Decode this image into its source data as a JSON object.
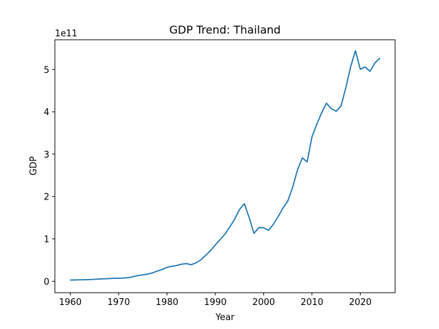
{
  "chart_data": {
    "type": "line",
    "title": "GDP Trend: Thailand",
    "xlabel": "Year",
    "ylabel": "GDP",
    "y_scale_label": "1e11",
    "xlim": [
      1956.8,
      2027.2
    ],
    "ylim": [
      -0.27,
      5.7
    ],
    "x_ticks": [
      1960,
      1970,
      1980,
      1990,
      2000,
      2010,
      2020
    ],
    "y_ticks": [
      0,
      1,
      2,
      3,
      4,
      5
    ],
    "grid": false,
    "line_color": "#1f77b4",
    "series": [
      {
        "x": [
          1960,
          1961,
          1962,
          1963,
          1964,
          1965,
          1966,
          1967,
          1968,
          1969,
          1970,
          1971,
          1972,
          1973,
          1974,
          1975,
          1976,
          1977,
          1978,
          1979,
          1980,
          1981,
          1982,
          1983,
          1984,
          1985,
          1986,
          1987,
          1988,
          1989,
          1990,
          1991,
          1992,
          1993,
          1994,
          1995,
          1996,
          1997,
          1998,
          1999,
          2000,
          2001,
          2002,
          2003,
          2004,
          2005,
          2006,
          2007,
          2008,
          2009,
          2010,
          2011,
          2012,
          2013,
          2014,
          2015,
          2016,
          2017,
          2018,
          2019,
          2020,
          2021,
          2022,
          2023,
          2024
        ],
        "values": [
          0.027,
          0.03,
          0.033,
          0.036,
          0.04,
          0.045,
          0.053,
          0.058,
          0.063,
          0.07,
          0.072,
          0.075,
          0.084,
          0.109,
          0.135,
          0.15,
          0.168,
          0.197,
          0.241,
          0.278,
          0.327,
          0.352,
          0.371,
          0.401,
          0.418,
          0.389,
          0.435,
          0.505,
          0.612,
          0.722,
          0.855,
          0.985,
          1.112,
          1.284,
          1.464,
          1.693,
          1.83,
          1.505,
          1.13,
          1.266,
          1.262,
          1.202,
          1.343,
          1.527,
          1.728,
          1.893,
          2.219,
          2.629,
          2.912,
          2.817,
          3.41,
          3.708,
          3.976,
          4.202,
          4.074,
          4.012,
          4.134,
          4.564,
          5.064,
          5.44,
          5.003,
          5.057,
          4.955,
          5.149,
          5.263
        ]
      }
    ]
  }
}
